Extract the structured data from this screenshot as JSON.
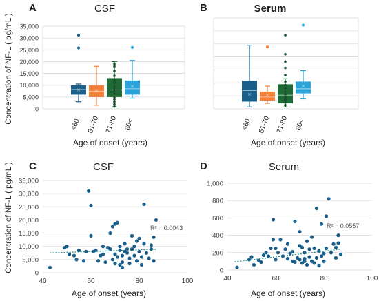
{
  "chart_data": [
    {
      "panel": "A",
      "type": "box",
      "title": "CSF",
      "xlabel": "Age of onset (years)",
      "ylabel": "Concentration of NF-L ( pg/mL )",
      "ylim": [
        0,
        35000
      ],
      "yticks": [
        "0",
        "5,000",
        "10,000",
        "15,000",
        "20,000",
        "25,000",
        "30,000",
        "35,000"
      ],
      "grid": true,
      "categories": [
        "<60",
        "61-70",
        "71-80",
        "80<"
      ],
      "boxes": [
        {
          "category": "<60",
          "min": 3000,
          "q1": 6000,
          "median": 8200,
          "mean": 8000,
          "q3": 10000,
          "max": 10500,
          "outliers": [
            25800,
            31200
          ],
          "points": [],
          "color": "#1a5f8a"
        },
        {
          "category": "61-70",
          "min": 1500,
          "q1": 5000,
          "median": 7500,
          "mean": 7800,
          "q3": 10000,
          "max": 18000,
          "outliers": [],
          "points": [],
          "color": "#f2803a"
        },
        {
          "category": "71-80",
          "min": 800,
          "q1": 5000,
          "median": 8000,
          "mean": 9000,
          "q3": 13000,
          "max": 20000,
          "outliers": [],
          "points": [
            1000,
            2000,
            3000,
            4000,
            5000,
            6500,
            7500,
            8500,
            9500,
            11000,
            12000,
            14000,
            16000,
            18000,
            19000
          ],
          "color": "#1f6b35"
        },
        {
          "category": "80<",
          "min": 4500,
          "q1": 6000,
          "median": 8500,
          "mean": 9500,
          "q3": 12000,
          "max": 20500,
          "outliers": [
            26000
          ],
          "points": [],
          "color": "#2aa3d8"
        }
      ]
    },
    {
      "panel": "B",
      "type": "box",
      "title": "Serum",
      "xlabel": "Age of onset (years)",
      "ylabel": "",
      "ylim": [
        0,
        1000
      ],
      "grid": true,
      "categories": [
        "<60",
        "61-70",
        "71-80",
        "80<"
      ],
      "boxes": [
        {
          "category": "<60",
          "min": 20,
          "q1": 80,
          "median": 200,
          "mean": 160,
          "q3": 310,
          "max": 700,
          "outliers": [],
          "points": [],
          "color": "#1a5f8a"
        },
        {
          "category": "61-70",
          "min": 60,
          "q1": 90,
          "median": 130,
          "mean": 150,
          "q3": 190,
          "max": 250,
          "outliers": [
            680
          ],
          "points": [],
          "color": "#f2803a"
        },
        {
          "category": "71-80",
          "min": 20,
          "q1": 60,
          "median": 150,
          "mean": 200,
          "q3": 270,
          "max": 330,
          "outliers": [],
          "points": [
            40,
            70,
            100,
            130,
            160,
            190,
            220,
            260,
            300,
            370,
            450,
            520,
            600,
            810
          ],
          "color": "#1f6b35"
        },
        {
          "category": "80<",
          "min": 110,
          "q1": 170,
          "median": 220,
          "mean": 250,
          "q3": 300,
          "max": 420,
          "outliers": [
            920
          ],
          "points": [],
          "color": "#2aa3d8"
        }
      ]
    },
    {
      "panel": "C",
      "type": "scatter",
      "title": "CSF",
      "xlabel": "Age of onset (years)",
      "ylabel": "Concentration of NF-L ( pg/mL )",
      "xlim": [
        40,
        100
      ],
      "ylim": [
        0,
        35000
      ],
      "xticks": [
        "40",
        "60",
        "80",
        "100"
      ],
      "yticks": [
        "0",
        "5,000",
        "10,000",
        "15,000",
        "20,000",
        "25,000",
        "30,000",
        "35,000"
      ],
      "r2_label": "R² = 0.0043",
      "trend": {
        "x": [
          43,
          87
        ],
        "y": [
          7500,
          8900
        ]
      },
      "color": "#1a5f8a",
      "x": [
        43,
        49,
        50,
        51,
        53,
        54,
        55,
        57,
        58,
        59,
        60,
        60,
        61,
        62,
        63,
        64,
        65,
        65,
        66,
        67,
        68,
        68,
        69,
        69,
        70,
        70,
        70,
        71,
        71,
        72,
        72,
        72,
        73,
        73,
        73,
        74,
        74,
        75,
        75,
        76,
        76,
        77,
        77,
        78,
        78,
        79,
        79,
        80,
        80,
        81,
        81,
        82,
        82,
        83,
        84,
        85,
        85,
        86,
        86,
        87
      ],
      "y": [
        2000,
        9500,
        10000,
        7000,
        6500,
        5000,
        8500,
        4500,
        8000,
        31000,
        25500,
        14000,
        8000,
        8500,
        4500,
        6500,
        7000,
        10000,
        4000,
        9500,
        9000,
        15000,
        5000,
        17500,
        18500,
        3500,
        7000,
        19000,
        6000,
        3000,
        8500,
        10000,
        2000,
        4000,
        6500,
        8000,
        11000,
        7500,
        9000,
        3500,
        5500,
        14000,
        9000,
        10000,
        6500,
        4500,
        12000,
        8000,
        13000,
        6000,
        3000,
        26000,
        11000,
        7500,
        5500,
        9000,
        10500,
        13500,
        4500,
        20000
      ]
    },
    {
      "panel": "D",
      "type": "scatter",
      "title": "Serum",
      "xlabel": "Age of onset (years)",
      "ylabel": "",
      "xlim": [
        40,
        100
      ],
      "ylim": [
        0,
        1000
      ],
      "xticks": [
        "40",
        "60",
        "80",
        "100"
      ],
      "yticks": [
        "0",
        "200",
        "400",
        "600",
        "800",
        "1,000"
      ],
      "r2_label": "R² = 0.0557",
      "trend": {
        "x": [
          43,
          87
        ],
        "y": [
          95,
          240
        ]
      },
      "color": "#1a5f8a",
      "x": [
        44,
        49,
        50,
        51,
        53,
        54,
        55,
        56,
        57,
        58,
        59,
        59,
        60,
        60,
        61,
        62,
        63,
        64,
        65,
        65,
        66,
        67,
        67,
        68,
        68,
        69,
        70,
        70,
        70,
        71,
        71,
        72,
        72,
        72,
        73,
        73,
        74,
        74,
        75,
        75,
        76,
        76,
        77,
        77,
        78,
        78,
        79,
        79,
        80,
        80,
        81,
        81,
        82,
        83,
        84,
        85,
        85,
        86,
        86,
        87
      ],
      "y": [
        30,
        120,
        150,
        60,
        110,
        90,
        170,
        200,
        160,
        250,
        580,
        350,
        120,
        250,
        200,
        350,
        160,
        240,
        130,
        300,
        190,
        100,
        210,
        90,
        560,
        140,
        120,
        440,
        280,
        80,
        260,
        130,
        100,
        200,
        330,
        60,
        150,
        240,
        100,
        380,
        250,
        80,
        710,
        140,
        220,
        50,
        530,
        160,
        190,
        100,
        620,
        250,
        820,
        200,
        300,
        260,
        140,
        400,
        310,
        180
      ]
    }
  ],
  "panels": [
    {
      "letter": "A",
      "xaxis": "Age of onset (years)"
    },
    {
      "letter": "B",
      "xaxis": "Age of onset (years)"
    },
    {
      "letter": "C",
      "xaxis": "Age of onset (years)"
    },
    {
      "letter": "D",
      "xaxis": "Age of onset (years)"
    }
  ],
  "style": {
    "grid": "#d9d9d9",
    "axis_text": "#404040",
    "trend": "#1a8a8a"
  }
}
